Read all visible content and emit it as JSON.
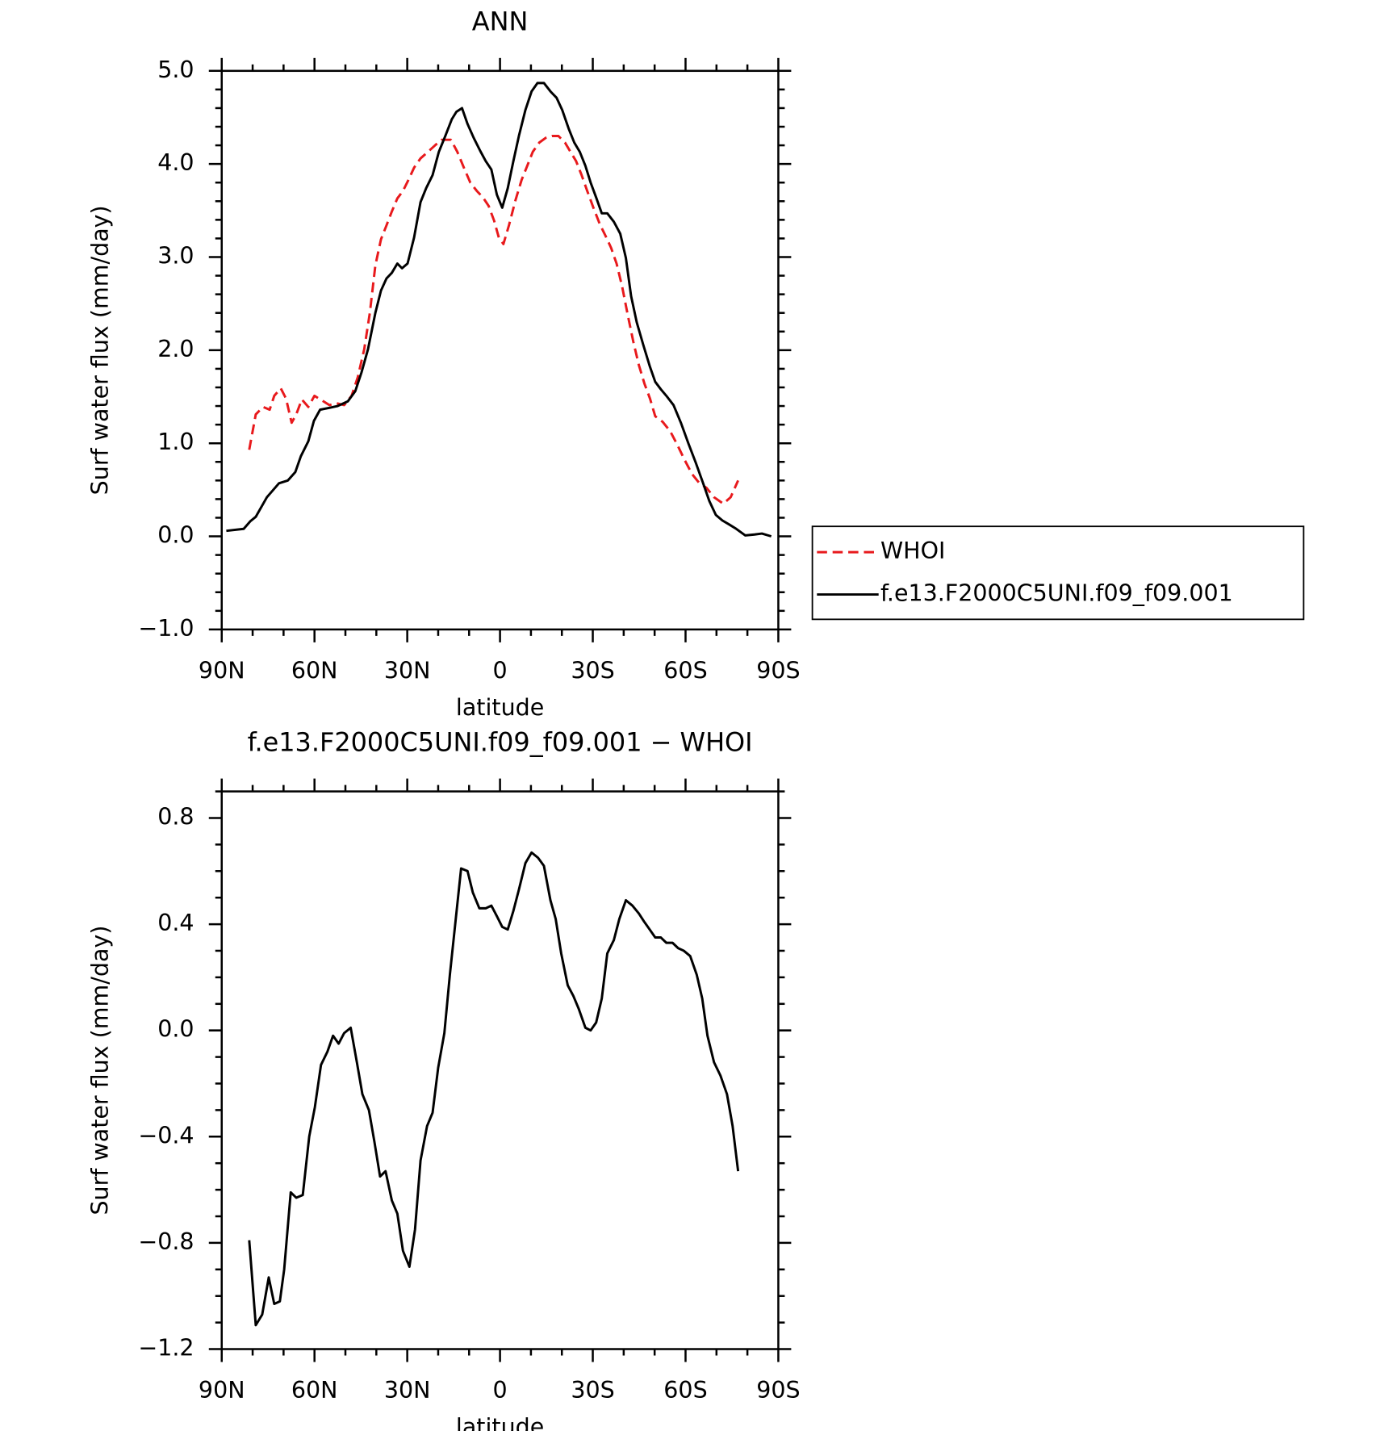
{
  "chart_data": [
    {
      "type": "line",
      "title": "ANN",
      "xlabel": "latitude",
      "ylabel": "Surf water flux (mm/day)",
      "xlim": [
        90,
        -90
      ],
      "xticks": [
        {
          "value": 90,
          "label": "90N"
        },
        {
          "value": 60,
          "label": "60N"
        },
        {
          "value": 30,
          "label": "30N"
        },
        0,
        {
          "value": -30,
          "label": "30S"
        },
        {
          "value": -60,
          "label": "60S"
        },
        {
          "value": -90,
          "label": "90S"
        }
      ],
      "ylim": [
        -1.0,
        5.0
      ],
      "yticks": [
        {
          "value": 5.0,
          "label": "5.0"
        },
        {
          "value": 4.0,
          "label": "4.0"
        },
        {
          "value": 3.0,
          "label": "3.0"
        },
        {
          "value": 2.0,
          "label": "2.0"
        },
        {
          "value": 1.0,
          "label": "1.0"
        },
        {
          "value": 0.0,
          "label": "0.0"
        },
        {
          "value": -1.0,
          "label": "−1.0"
        }
      ],
      "legend": "right",
      "series": [
        {
          "name": "WHOI",
          "color": "#e8191c",
          "dash": true,
          "x": [
            81.1,
            79,
            76.6,
            74.5,
            73,
            70.9,
            69.2,
            67.4,
            65.9,
            64.1,
            62,
            60,
            57.6,
            55.2,
            52.8,
            50.4,
            48,
            46,
            43.9,
            42.1,
            40.3,
            38.5,
            36.7,
            35,
            33.2,
            31.4,
            29.6,
            27.8,
            25.7,
            23.3,
            21,
            18.9,
            15.9,
            13.8,
            11.7,
            9.6,
            7.5,
            5.5,
            3.7,
            1.9,
            0.4,
            -1.1,
            -2.9,
            -5,
            -7,
            -8.8,
            -10.6,
            -12.7,
            -14.8,
            -16.8,
            -18.9,
            -21,
            -22.8,
            -24.6,
            -26.4,
            -28.2,
            -30.2,
            -32.3,
            -34.1,
            -35.9,
            -37.7,
            -39.5,
            -41.3,
            -43.1,
            -44.9,
            -46.7,
            -48.5,
            -50.2,
            -52.6,
            -55,
            -57.4,
            -59.7,
            -62.1,
            -64.5,
            -66.8,
            -69.2,
            -72.2,
            -74.6,
            -77
          ],
          "values": [
            0.93,
            1.31,
            1.39,
            1.36,
            1.51,
            1.59,
            1.48,
            1.22,
            1.31,
            1.47,
            1.39,
            1.51,
            1.46,
            1.41,
            1.43,
            1.41,
            1.51,
            1.71,
            2.01,
            2.4,
            2.91,
            3.19,
            3.34,
            3.49,
            3.63,
            3.71,
            3.83,
            3.96,
            4.06,
            4.13,
            4.2,
            4.26,
            4.26,
            4.13,
            3.96,
            3.8,
            3.71,
            3.64,
            3.55,
            3.39,
            3.21,
            3.14,
            3.34,
            3.61,
            3.83,
            3.98,
            4.13,
            4.23,
            4.28,
            4.3,
            4.3,
            4.23,
            4.13,
            4.03,
            3.88,
            3.71,
            3.53,
            3.35,
            3.23,
            3.1,
            2.93,
            2.68,
            2.38,
            2.09,
            1.84,
            1.64,
            1.48,
            1.29,
            1.23,
            1.13,
            0.98,
            0.82,
            0.67,
            0.57,
            0.52,
            0.42,
            0.35,
            0.42,
            0.6
          ]
        },
        {
          "name": "f.e13.F2000C5UNI.f09_f09.001",
          "color": "#000000",
          "dash": false,
          "x": [
            88.5,
            82.9,
            80.8,
            79,
            75.4,
            71.5,
            68.6,
            66.2,
            64.4,
            62,
            60.2,
            58.2,
            55.2,
            52.5,
            49.2,
            46.8,
            44.8,
            42.7,
            40.3,
            38.5,
            36.7,
            35,
            33.2,
            31.7,
            29.9,
            27.8,
            25.7,
            23.9,
            21.8,
            19.8,
            17.7,
            15.6,
            14.1,
            12.3,
            10.5,
            8.5,
            6.4,
            4.6,
            2.8,
            1,
            -0.7,
            -2.5,
            -4.3,
            -6.1,
            -8.2,
            -10.2,
            -12.1,
            -14.2,
            -16.3,
            -18.3,
            -20.1,
            -22.2,
            -24,
            -25.8,
            -27.6,
            -29.3,
            -31.1,
            -32.9,
            -34.7,
            -36.8,
            -38.9,
            -40.7,
            -42.4,
            -44.2,
            -46.3,
            -48.4,
            -50.2,
            -52,
            -53.8,
            -56.1,
            -58.5,
            -60.9,
            -63.3,
            -65.7,
            -67.7,
            -69.8,
            -71.9,
            -74,
            -76.4,
            -79.3,
            -82.3,
            -84.7,
            -87.7
          ],
          "values": [
            0.06,
            0.08,
            0.16,
            0.21,
            0.42,
            0.57,
            0.6,
            0.69,
            0.86,
            1.02,
            1.24,
            1.36,
            1.38,
            1.4,
            1.45,
            1.56,
            1.76,
            2.01,
            2.4,
            2.64,
            2.77,
            2.83,
            2.93,
            2.88,
            2.93,
            3.21,
            3.59,
            3.74,
            3.88,
            4.13,
            4.3,
            4.48,
            4.56,
            4.6,
            4.43,
            4.28,
            4.14,
            4.03,
            3.94,
            3.67,
            3.53,
            3.74,
            4.03,
            4.3,
            4.58,
            4.78,
            4.87,
            4.87,
            4.78,
            4.71,
            4.58,
            4.38,
            4.23,
            4.13,
            3.98,
            3.8,
            3.64,
            3.47,
            3.47,
            3.38,
            3.25,
            2.99,
            2.58,
            2.3,
            2.06,
            1.83,
            1.66,
            1.58,
            1.51,
            1.41,
            1.22,
            1.0,
            0.79,
            0.57,
            0.38,
            0.23,
            0.17,
            0.13,
            0.08,
            0.01,
            0.02,
            0.03,
            0.0
          ]
        }
      ]
    },
    {
      "type": "line",
      "title": "f.e13.F2000C5UNI.f09_f09.001 − WHOI",
      "xlabel": "latitude",
      "ylabel": "Surf water flux (mm/day)",
      "xlim": [
        90,
        -90
      ],
      "xticks": [
        {
          "value": 90,
          "label": "90N"
        },
        {
          "value": 60,
          "label": "60N"
        },
        {
          "value": 30,
          "label": "30N"
        },
        0,
        {
          "value": -30,
          "label": "30S"
        },
        {
          "value": -60,
          "label": "60S"
        },
        {
          "value": -90,
          "label": "90S"
        }
      ],
      "ylim": [
        -1.2,
        0.9
      ],
      "yticks": [
        0.8,
        0.4,
        {
          "value": 0.0,
          "label": "0.0"
        },
        {
          "value": -0.4,
          "label": "−0.4"
        },
        {
          "value": -0.8,
          "label": "−0.8"
        },
        {
          "value": -1.2,
          "label": "−1.2"
        }
      ],
      "series": [
        {
          "color": "#000000",
          "dash": false,
          "x": [
            81.1,
            79,
            76.9,
            74.8,
            73,
            71.2,
            69.8,
            67.7,
            65.9,
            63.8,
            61.7,
            59.9,
            57.9,
            55.8,
            54,
            52.2,
            50.4,
            48.3,
            46.3,
            44.5,
            42.4,
            40.6,
            38.8,
            37,
            35,
            33.2,
            31.4,
            29.3,
            27.5,
            25.7,
            23.6,
            21.8,
            20,
            18,
            16.2,
            14.4,
            12.6,
            10.5,
            8.8,
            6.7,
            4.6,
            2.8,
            1,
            -0.7,
            -2.5,
            -4.3,
            -6.1,
            -8.2,
            -10.2,
            -12.3,
            -14.2,
            -16.3,
            -18,
            -19.8,
            -21.9,
            -23.7,
            -25.5,
            -27.6,
            -29.3,
            -31.1,
            -32.9,
            -34.7,
            -36.8,
            -38.6,
            -40.7,
            -42.8,
            -44.9,
            -46.6,
            -48.4,
            -50.2,
            -52,
            -53.8,
            -55.8,
            -57.6,
            -59.4,
            -61.5,
            -63.6,
            -65.4,
            -67.1,
            -69.2,
            -71.3,
            -73.4,
            -75.2,
            -77
          ],
          "values": [
            -0.79,
            -1.11,
            -1.07,
            -0.93,
            -1.03,
            -1.02,
            -0.9,
            -0.61,
            -0.63,
            -0.62,
            -0.4,
            -0.29,
            -0.13,
            -0.08,
            -0.02,
            -0.05,
            -0.01,
            0.01,
            -0.12,
            -0.24,
            -0.3,
            -0.42,
            -0.55,
            -0.53,
            -0.64,
            -0.69,
            -0.83,
            -0.89,
            -0.75,
            -0.49,
            -0.36,
            -0.31,
            -0.14,
            -0.01,
            0.21,
            0.41,
            0.61,
            0.6,
            0.52,
            0.46,
            0.46,
            0.47,
            0.43,
            0.39,
            0.38,
            0.45,
            0.53,
            0.63,
            0.67,
            0.65,
            0.62,
            0.49,
            0.42,
            0.29,
            0.17,
            0.13,
            0.08,
            0.01,
            0.0,
            0.03,
            0.12,
            0.29,
            0.34,
            0.42,
            0.49,
            0.47,
            0.44,
            0.41,
            0.38,
            0.35,
            0.35,
            0.33,
            0.33,
            0.31,
            0.3,
            0.28,
            0.21,
            0.12,
            -0.02,
            -0.12,
            -0.17,
            -0.24,
            -0.36,
            -0.53
          ]
        }
      ]
    }
  ]
}
